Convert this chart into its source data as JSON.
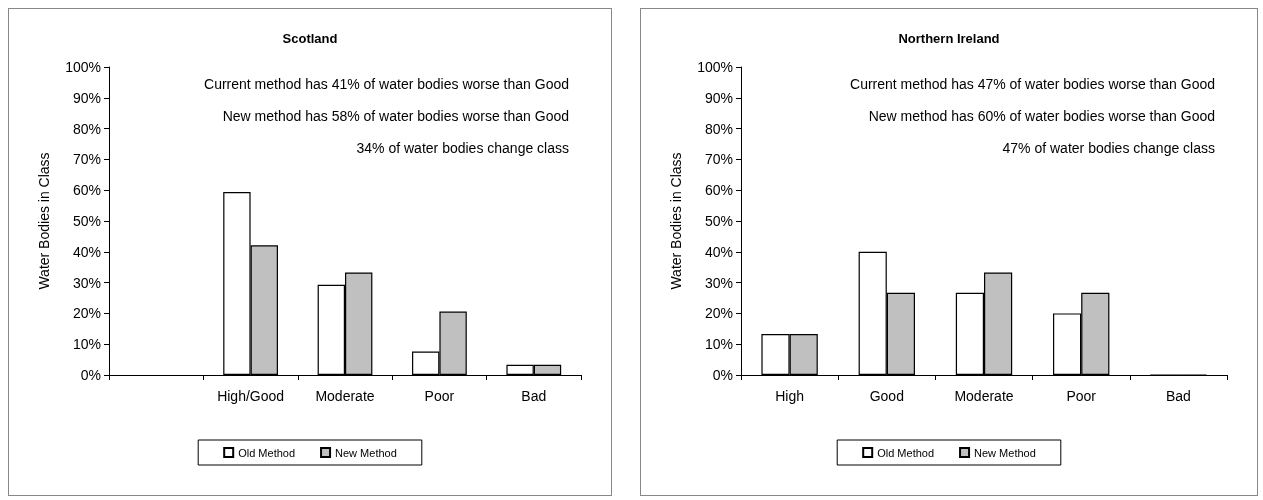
{
  "chart_data": [
    {
      "type": "bar",
      "title": "Scotland",
      "ylabel": "Water Bodies in Class",
      "categories": [
        null,
        "High/Good",
        "Moderate",
        "Poor",
        "Bad"
      ],
      "series": [
        {
          "name": "Old Method",
          "color": "#ffffff",
          "values": [
            null,
            59.4,
            29.3,
            7.6,
            3.3
          ]
        },
        {
          "name": "New Method",
          "color": "#c0c0c0",
          "values": [
            null,
            42.1,
            33.3,
            20.6,
            3.3
          ]
        }
      ],
      "ylim": [
        0,
        100
      ],
      "yticks": [
        {
          "value": 0,
          "label": "0%"
        },
        {
          "value": 10,
          "label": "10%"
        },
        {
          "value": 20,
          "label": "20%"
        },
        {
          "value": 30,
          "label": "30%"
        },
        {
          "value": 40,
          "label": "40%"
        },
        {
          "value": 50,
          "label": "50%"
        },
        {
          "value": 60,
          "label": "60%"
        },
        {
          "value": 70,
          "label": "70%"
        },
        {
          "value": 80,
          "label": "80%"
        },
        {
          "value": 90,
          "label": "90%"
        },
        {
          "value": 100,
          "label": "100%"
        }
      ],
      "grid": false,
      "legend": "bottom",
      "annotations": [
        "Current method has 41% of water bodies worse than Good",
        "New method has 58% of water bodies worse than Good",
        "34% of water bodies change class"
      ]
    },
    {
      "type": "bar",
      "title": "Northern Ireland",
      "ylabel": "Water Bodies in Class",
      "categories": [
        "High",
        "Good",
        "Moderate",
        "Poor",
        "Bad"
      ],
      "series": [
        {
          "name": "Old Method",
          "color": "#ffffff",
          "values": [
            13.3,
            40,
            26.7,
            20,
            0
          ]
        },
        {
          "name": "New Method",
          "color": "#c0c0c0",
          "values": [
            13.3,
            26.7,
            33.3,
            26.7,
            0
          ]
        }
      ],
      "ylim": [
        0,
        100
      ],
      "yticks": [
        {
          "value": 0,
          "label": "0%"
        },
        {
          "value": 10,
          "label": "10%"
        },
        {
          "value": 20,
          "label": "20%"
        },
        {
          "value": 30,
          "label": "30%"
        },
        {
          "value": 40,
          "label": "40%"
        },
        {
          "value": 50,
          "label": "50%"
        },
        {
          "value": 60,
          "label": "60%"
        },
        {
          "value": 70,
          "label": "70%"
        },
        {
          "value": 80,
          "label": "80%"
        },
        {
          "value": 90,
          "label": "90%"
        },
        {
          "value": 100,
          "label": "100%"
        }
      ],
      "grid": false,
      "legend": "bottom",
      "annotations": [
        "Current method has 47% of water bodies worse than Good",
        "New method has 60% of water bodies worse than Good",
        "47% of water bodies change class"
      ]
    }
  ]
}
